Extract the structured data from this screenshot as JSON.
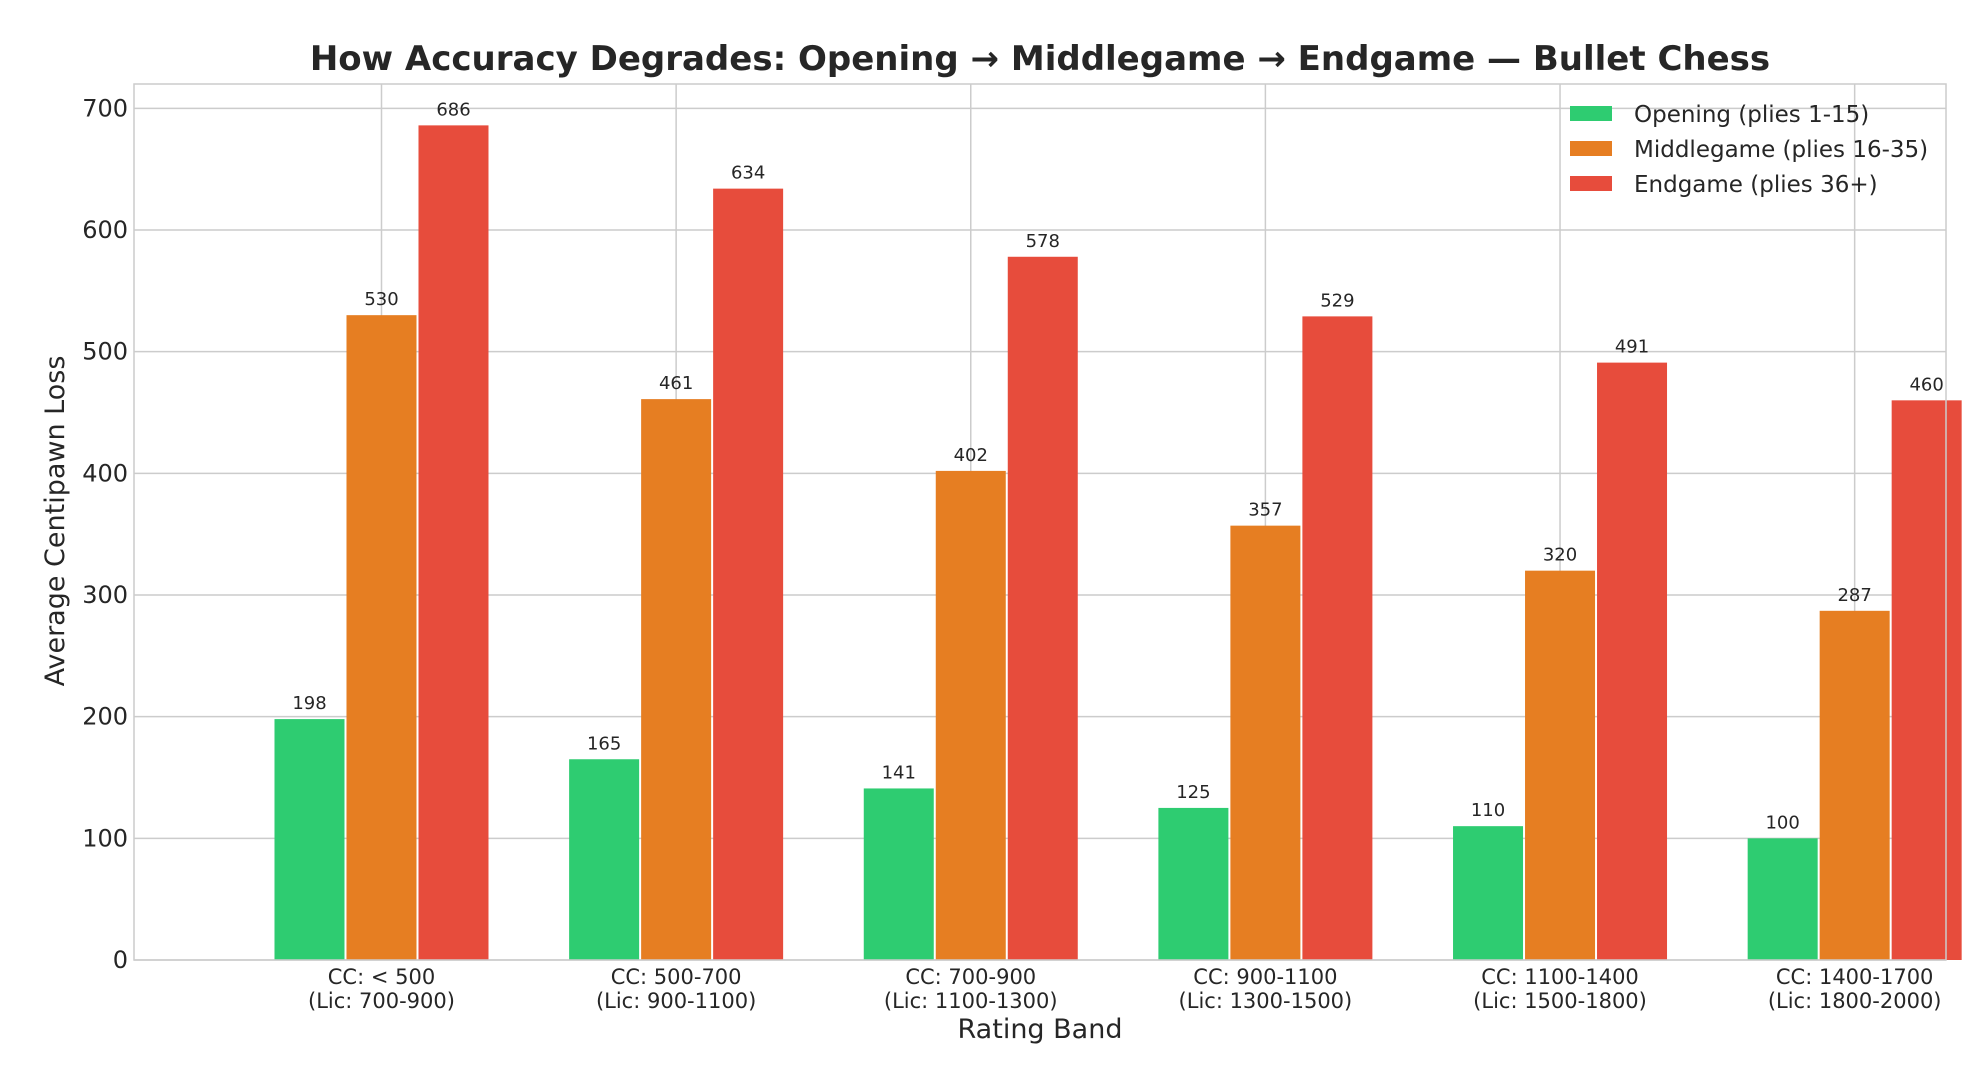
{
  "chart_data": {
    "type": "bar",
    "title": "How Accuracy Degrades: Opening → Middlegame → Endgame — Bullet Chess",
    "xlabel": "Rating Band",
    "ylabel": "Average Centipawn Loss",
    "categories": [
      [
        "CC: < 500",
        "(Lic: 700-900)"
      ],
      [
        "CC: 500-700",
        "(Lic: 900-1100)"
      ],
      [
        "CC: 700-900",
        "(Lic: 1100-1300)"
      ],
      [
        "CC: 900-1100",
        "(Lic: 1300-1500)"
      ],
      [
        "CC: 1100-1400",
        "(Lic: 1500-1800)"
      ],
      [
        "CC: 1400-1700",
        "(Lic: 1800-2000)"
      ]
    ],
    "series": [
      {
        "name": "Opening (plies 1-15)",
        "color": "#2ecc71",
        "values": [
          198,
          165,
          141,
          125,
          110,
          100
        ]
      },
      {
        "name": "Middlegame (plies 16-35)",
        "color": "#e67e22",
        "values": [
          530,
          461,
          402,
          357,
          320,
          287
        ]
      },
      {
        "name": "Endgame (plies 36+)",
        "color": "#e74c3c",
        "values": [
          686,
          634,
          578,
          529,
          491,
          460
        ]
      }
    ],
    "ylim": [
      0,
      720
    ],
    "yticks": [
      0,
      100,
      200,
      300,
      400,
      500,
      600,
      700
    ],
    "grid": true,
    "legend_position": "top-right"
  }
}
